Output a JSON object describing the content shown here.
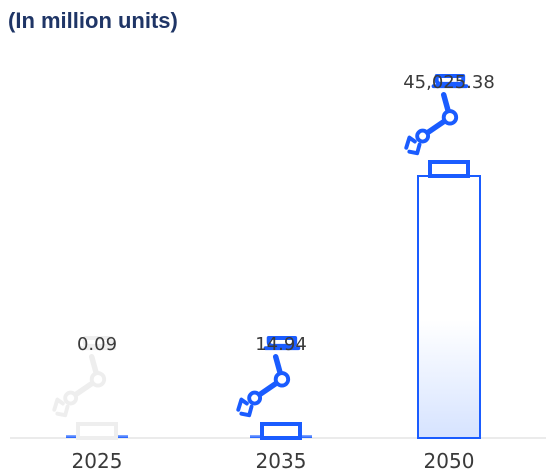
{
  "chart_data": {
    "type": "bar",
    "title": "(In million units)",
    "categories": [
      "2025",
      "2035",
      "2050"
    ],
    "values": [
      0.09,
      14.94,
      45025.38
    ],
    "value_labels": [
      "0.09",
      "14.94",
      "45,025.38"
    ],
    "xlabel": "",
    "ylabel": "",
    "grid": false,
    "legend": "none",
    "icon": "robot-arm-icon",
    "colors": {
      "accent": "#1a5cff",
      "icon_faded": "#eeeeee",
      "axis": "#d7d7d7",
      "text": "#3a3a3a",
      "title": "#1f3566"
    }
  }
}
